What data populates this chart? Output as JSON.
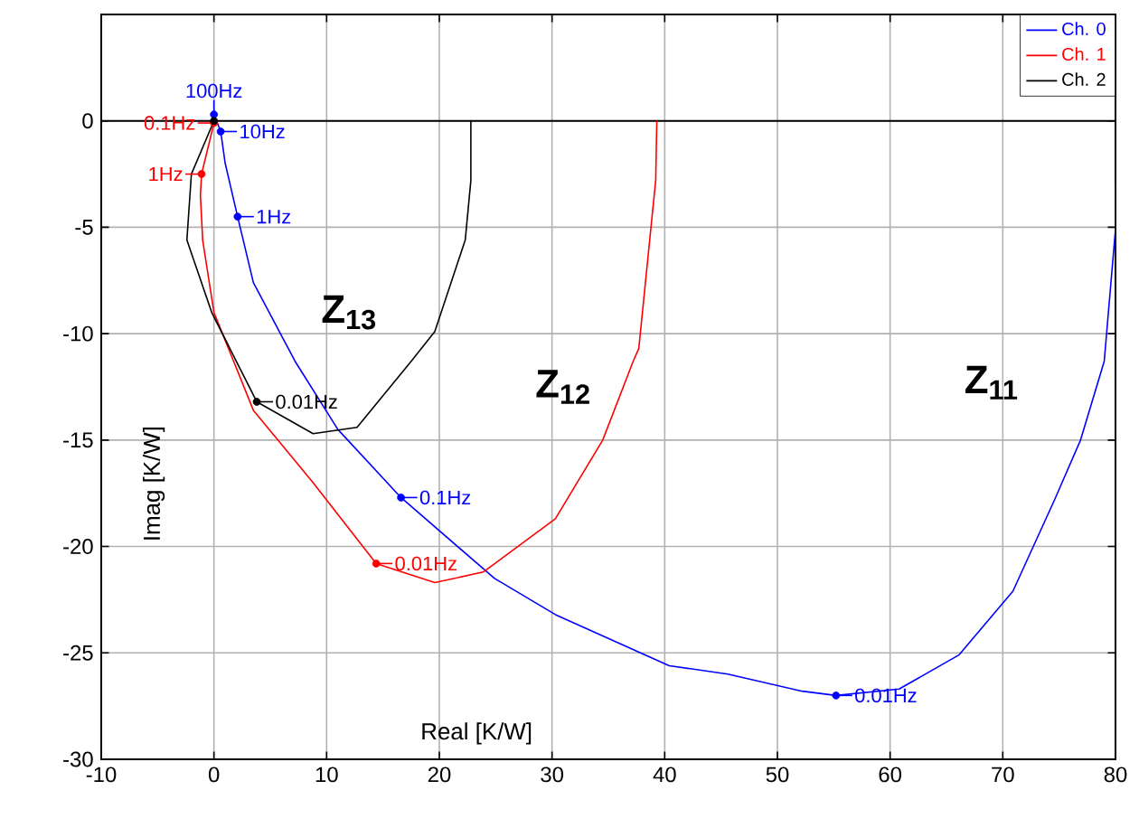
{
  "chart_data": {
    "type": "line",
    "xlabel": "Real  [K/W]",
    "ylabel": "Imag  [K/W]",
    "xlim": [
      -10,
      80
    ],
    "ylim": [
      -30,
      5
    ],
    "xticks": [
      -10,
      0,
      10,
      20,
      30,
      40,
      50,
      60,
      70,
      80
    ],
    "yticks": [
      -30,
      -25,
      -20,
      -15,
      -10,
      -5,
      0
    ],
    "grid": true,
    "legend": "top right",
    "ref_lines": [
      {
        "axis": "y",
        "value": 0,
        "color": "#000000"
      }
    ],
    "annotations": [
      "Z$_{13}$",
      "Z$_{12}$",
      "Z$_{11}$",
      {
        "text": "100Hz",
        "x": 0,
        "y": 0.3
      },
      {
        "text": "10Hz",
        "x": 0.6,
        "y": -0.5
      },
      {
        "text": "1Hz",
        "x": 2.1,
        "y": -4.5
      },
      {
        "text": "0.1Hz",
        "x": 16.6,
        "y": -17.7
      },
      {
        "text": "0.01Hz",
        "x": 55.2,
        "y": -27
      },
      {
        "text": "0.1Hz",
        "x": 0,
        "y": -0.1
      },
      {
        "text": "1Hz",
        "x": -1.1,
        "y": -2.5
      },
      {
        "text": "0.01Hz",
        "x": 14.4,
        "y": -20.8
      },
      {
        "text": "0.01Hz",
        "x": 3.8,
        "y": -13.2
      }
    ],
    "series": [
      {
        "name": "Ch. 0",
        "color": "#0000ff",
        "x": [
          0,
          0.6,
          1.0,
          2.1,
          3.5,
          7.2,
          11,
          16.6,
          24.9,
          30.3,
          40.4,
          45.6,
          52.2,
          55.2,
          60.8,
          66.1,
          70.9,
          74.6,
          76.9,
          79,
          80,
          80
        ],
        "values": [
          0.3,
          -0.5,
          -2,
          -4.5,
          -7.6,
          -11.3,
          -14.5,
          -17.7,
          -21.5,
          -23.2,
          -25.6,
          -26,
          -26.8,
          -27,
          -26.7,
          -25.1,
          -22.1,
          -17.8,
          -15,
          -11.3,
          -5.1,
          -3
        ]
      },
      {
        "name": "Ch. 1",
        "color": "#ff0000",
        "x": [
          0,
          -0.5,
          -1.1,
          -1.2,
          -1,
          0,
          3.5,
          8.8,
          14.4,
          19.6,
          23.9,
          30.3,
          34.5,
          37.2,
          37.7,
          39.2,
          39.3
        ],
        "values": [
          -0.1,
          -1.2,
          -2.5,
          -3.5,
          -5.6,
          -9,
          -13.6,
          -17,
          -20.8,
          -21.7,
          -21.2,
          -18.7,
          -15,
          -11.3,
          -10.7,
          -2.8,
          0
        ]
      },
      {
        "name": "Ch. 2",
        "color": "#000000",
        "x": [
          0,
          -2,
          -2.4,
          -0.2,
          3.8,
          8.8,
          12.7,
          17.5,
          19.6,
          22.3,
          22.8,
          22.8
        ],
        "values": [
          0,
          -2.5,
          -5.6,
          -9,
          -13.2,
          -14.7,
          -14.4,
          -11.3,
          -9.9,
          -5.6,
          -2.8,
          0
        ]
      },
      {
        "type": "scatter",
        "color": "#0000ff",
        "x": [
          0,
          0.6,
          2.1,
          16.6,
          55.2
        ],
        "values": [
          0.3,
          -0.5,
          -4.5,
          -17.7,
          -27
        ]
      },
      {
        "type": "scatter",
        "color": "#ff0000",
        "x": [
          0,
          -1.1,
          14.4
        ],
        "values": [
          -0.1,
          -2.5,
          -20.8
        ]
      },
      {
        "type": "scatter",
        "color": "#000000",
        "x": [
          0,
          3.8
        ],
        "values": [
          0,
          -13.2
        ]
      }
    ]
  }
}
